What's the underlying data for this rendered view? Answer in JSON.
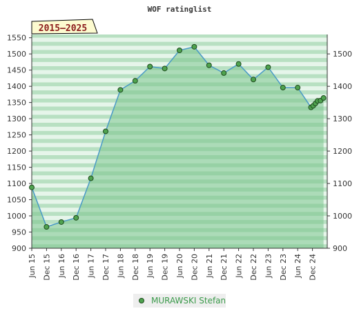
{
  "chart_data": {
    "type": "area",
    "title": "WOF ratinglist",
    "period": "2015–2025",
    "x_ticks": [
      "Jun 15",
      "Dec 15",
      "Jun 16",
      "Dec 16",
      "Jun 17",
      "Dec 17",
      "Jun 18",
      "Dec 18",
      "Jun 19",
      "Dec 19",
      "Jun 20",
      "Dec 20",
      "Jun 21",
      "Dec 21",
      "Jun 22",
      "Dec 22",
      "Jun 23",
      "Dec 23",
      "Jun 24",
      "Dec 24"
    ],
    "y_ticks": [
      900,
      950,
      1000,
      1050,
      1100,
      1150,
      1200,
      1250,
      1300,
      1350,
      1400,
      1450,
      1500,
      1550
    ],
    "y_ticks_right": [
      900,
      1000,
      1100,
      1200,
      1300,
      1400,
      1500
    ],
    "ylim": [
      900,
      1560
    ],
    "grid": true,
    "legend_position": "bottom",
    "colors": {
      "line": "#4a9ac6",
      "marker": "#4fa34f",
      "fill": "#7cc48e",
      "band_dark": "#b8e0c2",
      "band_light": "#e6f5ea"
    },
    "series": [
      {
        "name": "MURAWSKI Stefan",
        "x": [
          0,
          1,
          2,
          3,
          4,
          5,
          6,
          7,
          8,
          9,
          10,
          11,
          12,
          13,
          14,
          15,
          16,
          17,
          18,
          18.9,
          19.05,
          19.2,
          19.35,
          19.55,
          19.75
        ],
        "values": [
          1088,
          966,
          981,
          994,
          1116,
          1261,
          1389,
          1417,
          1461,
          1455,
          1511,
          1522,
          1465,
          1441,
          1469,
          1421,
          1459,
          1396,
          1396,
          1335,
          1340,
          1347,
          1355,
          1356,
          1364
        ]
      }
    ]
  }
}
